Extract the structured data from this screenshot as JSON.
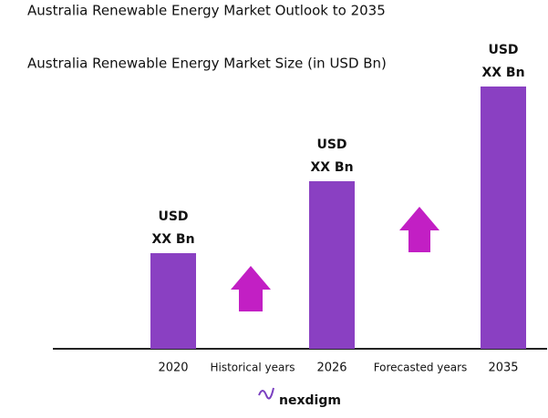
{
  "chart_data": {
    "type": "bar",
    "title": "Australia Renewable Energy Market Outlook to 2035",
    "subtitle": "Australia Renewable Energy Market Size (in USD Bn)",
    "categories": [
      "2020",
      "2026",
      "2035"
    ],
    "values": [
      105,
      184,
      288
    ],
    "value_labels": [
      [
        "USD",
        "XX Bn"
      ],
      [
        "USD",
        "XX Bn"
      ],
      [
        "USD",
        "XX Bn"
      ]
    ],
    "color": "#8a40c2",
    "ylim": [
      0,
      300
    ],
    "annotations": [
      "Historical years",
      "Forecasted years"
    ],
    "brand": "nexdigm"
  }
}
